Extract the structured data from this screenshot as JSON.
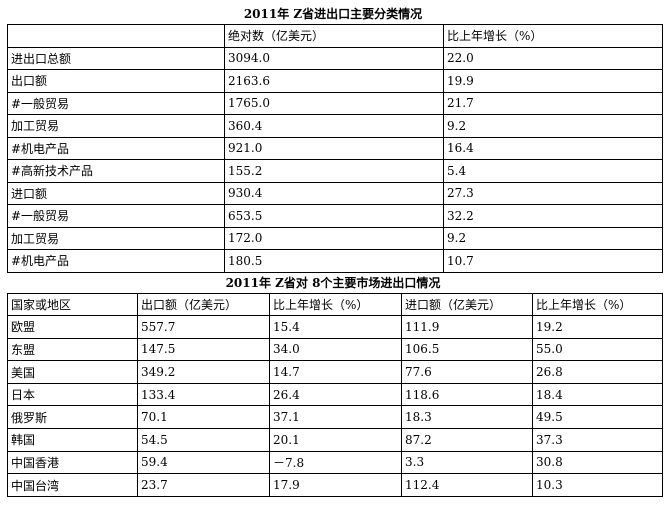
{
  "table1": {
    "title": "2011年 Z省进出口主要分类情况",
    "header": [
      "",
      "绝对数（亿美元）",
      "比上年增长（%）"
    ],
    "rows": [
      [
        "进出口总额",
        "3094.0",
        "22.0"
      ],
      [
        "出口额",
        "2163.6",
        "19.9"
      ],
      [
        "#一般贸易",
        "1765.0",
        "21.7"
      ],
      [
        "加工贸易",
        "360.4",
        "9.2"
      ],
      [
        "#机电产品",
        "921.0",
        "16.4"
      ],
      [
        "#高新技术产品",
        "155.2",
        "5.4"
      ],
      [
        "进口额",
        "930.4",
        "27.3"
      ],
      [
        "#一般贸易",
        "653.5",
        "32.2"
      ],
      [
        "加工贸易",
        "172.0",
        "9.2"
      ],
      [
        "#机电产品",
        "180.5",
        "10.7"
      ]
    ]
  },
  "table2": {
    "title": "2011年 Z省对 8个主要市场进出口情况",
    "header": [
      "国家或地区",
      "出口额（亿美元）",
      "比上年增长（%）",
      "进口额（亿美元）",
      "比上年增长（%）"
    ],
    "rows": [
      [
        "欧盟",
        "557.7",
        "15.4",
        "111.9",
        "19.2"
      ],
      [
        "东盟",
        "147.5",
        "34.0",
        "106.5",
        "55.0"
      ],
      [
        "美国",
        "349.2",
        "14.7",
        "77.6",
        "26.8"
      ],
      [
        "日本",
        "133.4",
        "26.4",
        "118.6",
        "18.4"
      ],
      [
        "俄罗斯",
        "70.1",
        "37.1",
        "18.3",
        "49.5"
      ],
      [
        "韩国",
        "54.5",
        "20.1",
        "87.2",
        "37.3"
      ],
      [
        "中国香港",
        "59.4",
        "－7.8",
        "3.3",
        "30.8"
      ],
      [
        "中国台湾",
        "23.7",
        "17.9",
        "112.4",
        "10.3"
      ]
    ]
  }
}
